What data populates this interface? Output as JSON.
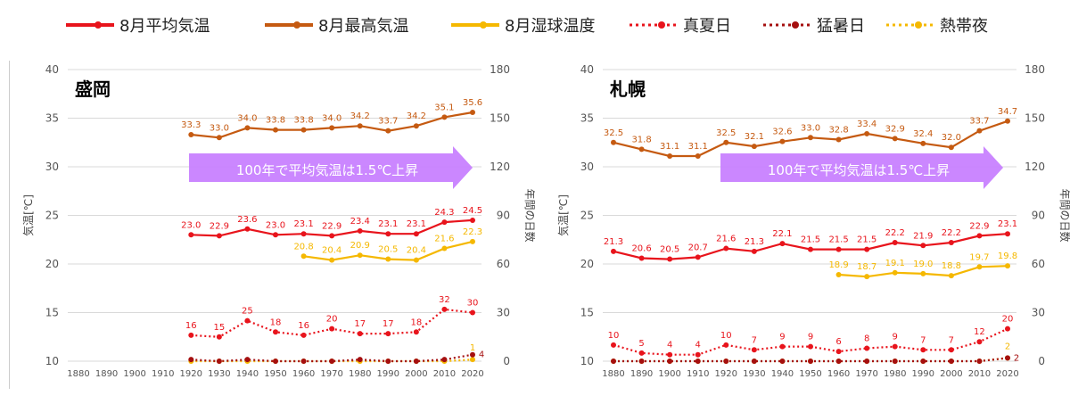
{
  "legend": {
    "items": [
      {
        "label": "8月平均気温",
        "color": "#e8141c",
        "style": "solid"
      },
      {
        "label": "8月最高気温",
        "color": "#c55a11",
        "style": "solid"
      },
      {
        "label": "8月湿球温度",
        "color": "#f5b800",
        "style": "solid"
      },
      {
        "label": "真夏日",
        "color": "#e8141c",
        "style": "dotted"
      },
      {
        "label": "猛暑日",
        "color": "#a50f0f",
        "style": "dotted"
      },
      {
        "label": "熱帯夜",
        "color": "#f5b800",
        "style": "dotted"
      }
    ]
  },
  "chart_data": [
    {
      "type": "line",
      "title": "盛岡",
      "annotation": "100年で平均気温は1.5℃上昇",
      "ylabel": "気温[℃]",
      "y2label": "年間の日数",
      "ylim": [
        10,
        40
      ],
      "y2lim": [
        0,
        180
      ],
      "yticks": [
        10,
        15,
        20,
        25,
        30,
        35,
        40
      ],
      "y2ticks": [
        0,
        30,
        60,
        90,
        120,
        150,
        180
      ],
      "categories": [
        "1880",
        "1890",
        "1900",
        "1910",
        "1920",
        "1930",
        "1940",
        "1950",
        "1960",
        "1970",
        "1980",
        "1990",
        "2000",
        "2010",
        "2020"
      ],
      "grid": true,
      "series": [
        {
          "name": "8月最高気温",
          "axis": "left",
          "color": "#c55a11",
          "style": "solid",
          "x": [
            1920,
            1930,
            1940,
            1950,
            1960,
            1970,
            1980,
            1990,
            2000,
            2010,
            2020
          ],
          "values": [
            33.3,
            33.0,
            34.0,
            33.8,
            33.8,
            34.0,
            34.2,
            33.7,
            34.2,
            35.1,
            35.6
          ],
          "labels": [
            "33.3",
            "33.0",
            "34.0",
            "33.8",
            "33.8",
            "34.0",
            "34.2",
            "33.7",
            "34.2",
            "35.1",
            "35.6"
          ]
        },
        {
          "name": "8月平均気温",
          "axis": "left",
          "color": "#e8141c",
          "style": "solid",
          "x": [
            1920,
            1930,
            1940,
            1950,
            1960,
            1970,
            1980,
            1990,
            2000,
            2010,
            2020
          ],
          "values": [
            23.0,
            22.9,
            23.6,
            23.0,
            23.1,
            22.9,
            23.4,
            23.1,
            23.1,
            24.3,
            24.5
          ],
          "labels": [
            "23.0",
            "22.9",
            "23.6",
            "23.0",
            "23.1",
            "22.9",
            "23.4",
            "23.1",
            "23.1",
            "24.3",
            "24.5"
          ]
        },
        {
          "name": "8月湿球温度",
          "axis": "left",
          "color": "#f5b800",
          "style": "solid",
          "x": [
            1960,
            1970,
            1980,
            1990,
            2000,
            2010,
            2020
          ],
          "values": [
            20.8,
            20.4,
            20.9,
            20.5,
            20.4,
            21.6,
            22.3
          ],
          "labels": [
            "20.8",
            "20.4",
            "20.9",
            "20.5",
            "20.4",
            "21.6",
            "22.3"
          ]
        },
        {
          "name": "真夏日",
          "axis": "right",
          "color": "#e8141c",
          "style": "dotted",
          "x": [
            1920,
            1930,
            1940,
            1950,
            1960,
            1970,
            1980,
            1990,
            2000,
            2010,
            2020
          ],
          "values": [
            16,
            15,
            25,
            18,
            16,
            20,
            17,
            17,
            18,
            32,
            30
          ],
          "labels": [
            "16",
            "15",
            "25",
            "18",
            "16",
            "20",
            "17",
            "17",
            "18",
            "32",
            "30"
          ]
        },
        {
          "name": "猛暑日",
          "axis": "right",
          "color": "#a50f0f",
          "style": "dotted",
          "x": [
            1920,
            1930,
            1940,
            1950,
            1960,
            1970,
            1980,
            1990,
            2000,
            2010,
            2020
          ],
          "values": [
            1,
            0,
            1,
            0,
            0,
            0,
            1,
            0,
            0,
            1,
            4
          ],
          "labels": [
            "",
            "",
            "",
            "",
            "",
            "",
            "",
            "",
            "",
            "",
            "4"
          ]
        },
        {
          "name": "熱帯夜",
          "axis": "right",
          "color": "#f5b800",
          "style": "dotted",
          "x": [
            1920,
            1930,
            1940,
            1950,
            1960,
            1970,
            1980,
            1990,
            2000,
            2010,
            2020
          ],
          "values": [
            0,
            0,
            0,
            0,
            0,
            0,
            0,
            0,
            0,
            0,
            1
          ],
          "labels": [
            "",
            "",
            "",
            "",
            "",
            "",
            "",
            "",
            "",
            "",
            "1"
          ]
        }
      ]
    },
    {
      "type": "line",
      "title": "札幌",
      "annotation": "100年で平均気温は1.5℃上昇",
      "ylabel": "気温[℃]",
      "y2label": "年間の日数",
      "ylim": [
        10,
        40
      ],
      "y2lim": [
        0,
        180
      ],
      "yticks": [
        10,
        15,
        20,
        25,
        30,
        35,
        40
      ],
      "y2ticks": [
        0,
        30,
        60,
        90,
        120,
        150,
        180
      ],
      "categories": [
        "1880",
        "1890",
        "1900",
        "1910",
        "1920",
        "1930",
        "1940",
        "1950",
        "1960",
        "1970",
        "1980",
        "1990",
        "2000",
        "2010",
        "2020"
      ],
      "grid": true,
      "series": [
        {
          "name": "8月最高気温",
          "axis": "left",
          "color": "#c55a11",
          "style": "solid",
          "x": [
            1880,
            1890,
            1900,
            1910,
            1920,
            1930,
            1940,
            1950,
            1960,
            1970,
            1980,
            1990,
            2000,
            2010,
            2020
          ],
          "values": [
            32.5,
            31.8,
            31.1,
            31.1,
            32.5,
            32.1,
            32.6,
            33.0,
            32.8,
            33.4,
            32.9,
            32.4,
            32.0,
            33.7,
            34.7
          ],
          "labels": [
            "32.5",
            "31.8",
            "31.1",
            "31.1",
            "32.5",
            "32.1",
            "32.6",
            "33.0",
            "32.8",
            "33.4",
            "32.9",
            "32.4",
            "32.0",
            "33.7",
            "34.7"
          ]
        },
        {
          "name": "8月平均気温",
          "axis": "left",
          "color": "#e8141c",
          "style": "solid",
          "x": [
            1880,
            1890,
            1900,
            1910,
            1920,
            1930,
            1940,
            1950,
            1960,
            1970,
            1980,
            1990,
            2000,
            2010,
            2020
          ],
          "values": [
            21.3,
            20.6,
            20.5,
            20.7,
            21.6,
            21.3,
            22.1,
            21.5,
            21.5,
            21.5,
            22.2,
            21.9,
            22.2,
            22.9,
            23.1
          ],
          "labels": [
            "21.3",
            "20.6",
            "20.5",
            "20.7",
            "21.6",
            "21.3",
            "22.1",
            "21.5",
            "21.5",
            "21.5",
            "22.2",
            "21.9",
            "22.2",
            "22.9",
            "23.1"
          ]
        },
        {
          "name": "8月湿球温度",
          "axis": "left",
          "color": "#f5b800",
          "style": "solid",
          "x": [
            1960,
            1970,
            1980,
            1990,
            2000,
            2010,
            2020
          ],
          "values": [
            18.9,
            18.7,
            19.1,
            19.0,
            18.8,
            19.7,
            19.8
          ],
          "labels": [
            "18.9",
            "18.7",
            "19.1",
            "19.0",
            "18.8",
            "19.7",
            "19.8"
          ]
        },
        {
          "name": "真夏日",
          "axis": "right",
          "color": "#e8141c",
          "style": "dotted",
          "x": [
            1880,
            1890,
            1900,
            1910,
            1920,
            1930,
            1940,
            1950,
            1960,
            1970,
            1980,
            1990,
            2000,
            2010,
            2020
          ],
          "values": [
            10,
            5,
            4,
            4,
            10,
            7,
            9,
            9,
            6,
            8,
            9,
            7,
            7,
            12,
            20
          ],
          "labels": [
            "10",
            "5",
            "4",
            "4",
            "10",
            "7",
            "9",
            "9",
            "6",
            "8",
            "9",
            "7",
            "7",
            "12",
            "20"
          ]
        },
        {
          "name": "猛暑日",
          "axis": "right",
          "color": "#a50f0f",
          "style": "dotted",
          "x": [
            1880,
            1890,
            1900,
            1910,
            1920,
            1930,
            1940,
            1950,
            1960,
            1970,
            1980,
            1990,
            2000,
            2010,
            2020
          ],
          "values": [
            0,
            0,
            0,
            0,
            0,
            0,
            0,
            0,
            0,
            0,
            0,
            0,
            0,
            0,
            2
          ],
          "labels": [
            "",
            "",
            "",
            "",
            "",
            "",
            "",
            "",
            "",
            "",
            "",
            "",
            "",
            "",
            "2"
          ]
        },
        {
          "name": "熱帯夜",
          "axis": "right",
          "color": "#f5b800",
          "style": "dotted",
          "x": [
            1880,
            1890,
            1900,
            1910,
            1920,
            1930,
            1940,
            1950,
            1960,
            1970,
            1980,
            1990,
            2000,
            2010,
            2020
          ],
          "values": [
            0,
            0,
            0,
            0,
            0,
            0,
            0,
            0,
            0,
            0,
            0,
            0,
            0,
            0,
            2
          ],
          "labels": [
            "",
            "",
            "",
            "",
            "",
            "",
            "",
            "",
            "",
            "",
            "",
            "",
            "",
            "",
            "2"
          ]
        }
      ]
    }
  ]
}
